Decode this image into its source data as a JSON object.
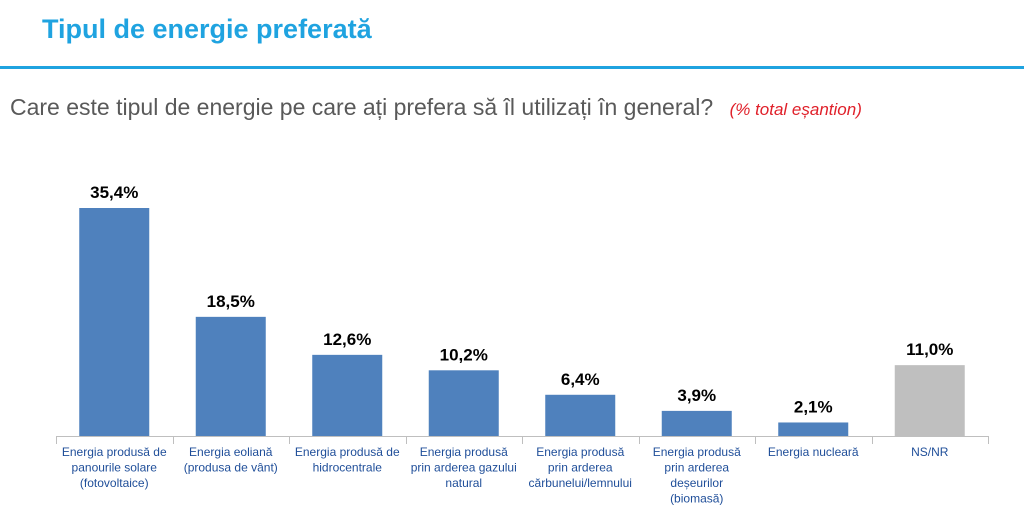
{
  "page": {
    "title": "Tipul de energie preferată",
    "question": "Care este tipul de energie pe care ați prefera să îl utilizați în general?",
    "question_note": "(% total eșantion)"
  },
  "colors": {
    "title": "#1fa3e0",
    "rule": "#1fa3e0",
    "note": "#e0202a",
    "bar_main": "#4f81bd",
    "bar_ns": "#bfbfbf",
    "category_text": "#1f4e99",
    "axis": "#bfbfbf"
  },
  "chart_data": {
    "type": "bar",
    "categories": [
      [
        "Energia produsă de",
        "panourile solare",
        "(fotovoltaice)"
      ],
      [
        "Energia eoliană",
        "(produsa de vânt)"
      ],
      [
        "Energia produsă de",
        "hidrocentrale"
      ],
      [
        "Energia produsă",
        "prin arderea gazului",
        "natural"
      ],
      [
        "Energia produsă",
        "prin arderea",
        "cărbunelui/lemnului"
      ],
      [
        "Energia produsă",
        "prin arderea",
        "deșeurilor",
        "(biomasă)"
      ],
      [
        "Energia nucleară"
      ],
      [
        "NS/NR"
      ]
    ],
    "values": [
      35.4,
      18.5,
      12.6,
      10.2,
      6.4,
      3.9,
      2.1,
      11.0
    ],
    "value_labels": [
      "35,4%",
      "18,5%",
      "12,6%",
      "10,2%",
      "6,4%",
      "3,9%",
      "2,1%",
      "11,0%"
    ],
    "unit": "%",
    "ylim": [
      0,
      38
    ],
    "grid": false,
    "legend": "none"
  }
}
